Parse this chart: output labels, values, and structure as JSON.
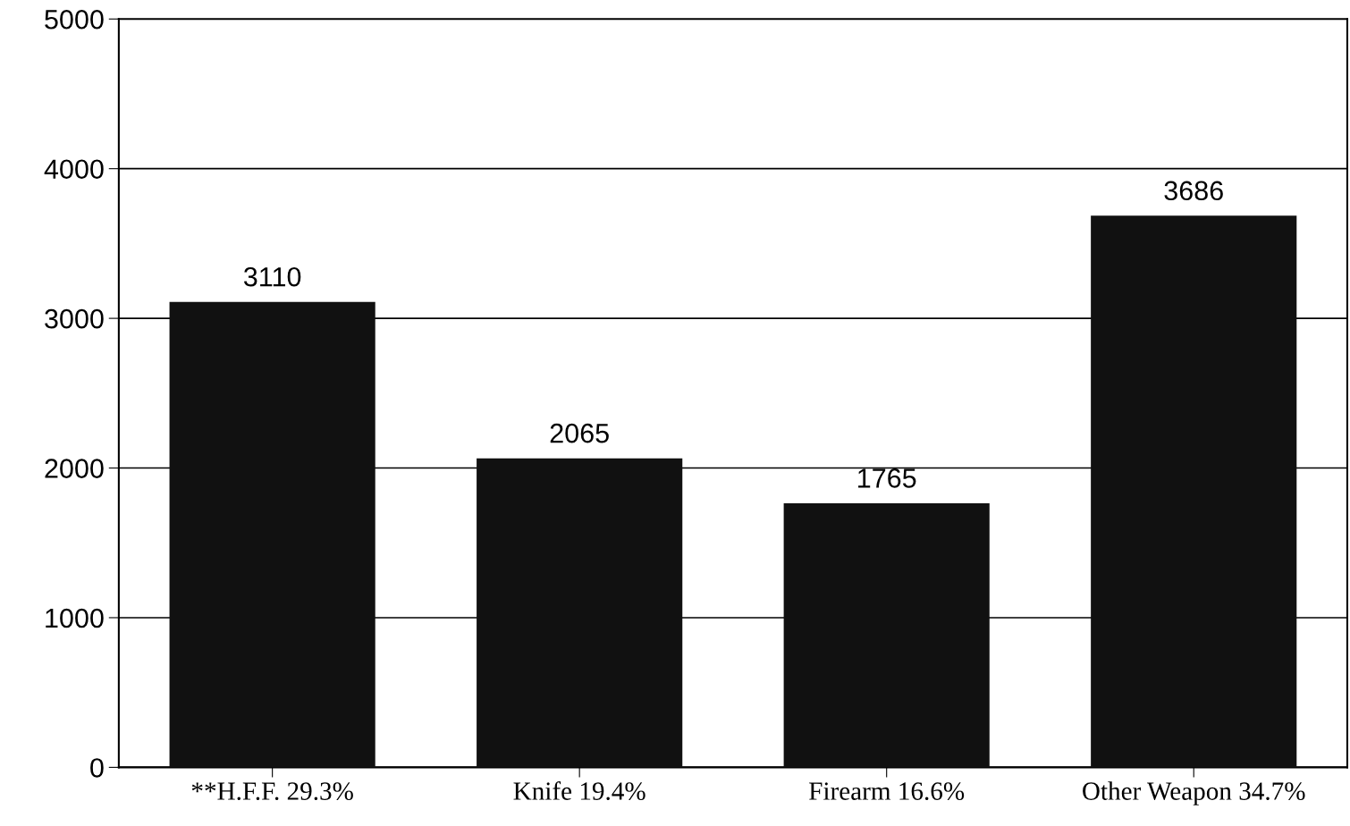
{
  "chart_data": {
    "type": "bar",
    "categories": [
      "**H.F.F. 29.3%",
      "Knife 19.4%",
      "Firearm 16.6%",
      "Other Weapon 34.7%"
    ],
    "values": [
      3110,
      2065,
      1765,
      3686
    ],
    "color": "#111111",
    "ylim": [
      0,
      5000
    ],
    "yticks": [
      0,
      1000,
      2000,
      3000,
      4000,
      5000
    ],
    "grid": "y",
    "data_labels": true
  }
}
